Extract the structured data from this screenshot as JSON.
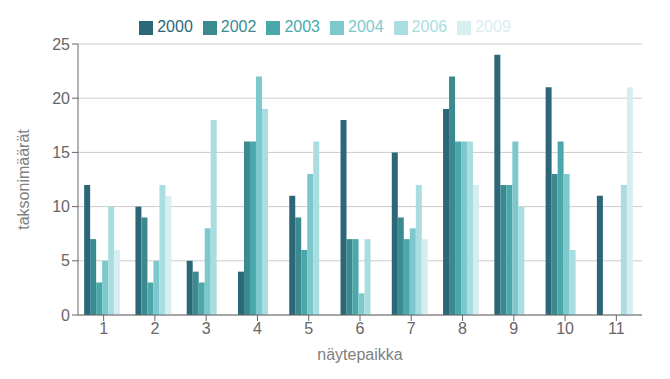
{
  "chart_data": {
    "type": "bar",
    "xlabel": "näytepaikka",
    "ylabel": "taksonimäärät",
    "categories": [
      "1",
      "2",
      "3",
      "4",
      "5",
      "6",
      "7",
      "8",
      "9",
      "10",
      "11"
    ],
    "series": [
      {
        "name": "2000",
        "color": "#2b6777",
        "values": [
          12,
          10,
          5,
          4,
          11,
          18,
          15,
          19,
          24,
          21,
          11
        ]
      },
      {
        "name": "2002",
        "color": "#3a8a90",
        "values": [
          7,
          9,
          4,
          16,
          9,
          7,
          9,
          22,
          12,
          13,
          null
        ]
      },
      {
        "name": "2003",
        "color": "#4aa8aa",
        "values": [
          3,
          3,
          3,
          16,
          6,
          7,
          7,
          16,
          12,
          16,
          null
        ]
      },
      {
        "name": "2004",
        "color": "#7dc8cc",
        "values": [
          5,
          5,
          8,
          22,
          13,
          2,
          8,
          16,
          16,
          13,
          null
        ]
      },
      {
        "name": "2006",
        "color": "#aadde0",
        "values": [
          10,
          12,
          18,
          19,
          16,
          7,
          12,
          16,
          10,
          6,
          12
        ]
      },
      {
        "name": "2009",
        "color": "#d6eef0",
        "values": [
          6,
          11,
          null,
          null,
          null,
          null,
          7,
          12,
          null,
          null,
          21
        ]
      }
    ],
    "ylim": [
      0,
      25
    ],
    "yticks": [
      0,
      5,
      10,
      15,
      20,
      25
    ],
    "grid": true,
    "legend": "top"
  }
}
